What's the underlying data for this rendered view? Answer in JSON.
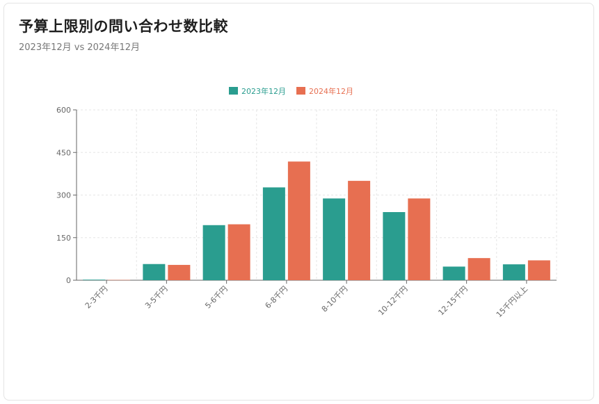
{
  "header": {
    "title": "予算上限別の問い合わせ数比較",
    "subtitle": "2023年12月 vs 2024年12月"
  },
  "chart_data": {
    "type": "bar",
    "title": "予算上限別の問い合わせ数比較",
    "subtitle": "2023年12月 vs 2024年12月",
    "categories": [
      "2-3千円",
      "3-5千円",
      "5-6千円",
      "6-8千円",
      "8-10千円",
      "10-12千円",
      "12-15千円",
      "15千円以上"
    ],
    "series": [
      {
        "name": "2023年12月",
        "color": "#2a9d8f",
        "values": [
          2,
          57,
          194,
          327,
          288,
          240,
          48,
          56
        ]
      },
      {
        "name": "2024年12月",
        "color": "#e76f51",
        "values": [
          1,
          54,
          197,
          418,
          350,
          288,
          78,
          70
        ]
      }
    ],
    "yticks": [
      0,
      150,
      300,
      450,
      600
    ],
    "ylim": [
      0,
      600
    ],
    "xlabel": "",
    "ylabel": "",
    "grid": true,
    "legend_position": "top-center"
  }
}
